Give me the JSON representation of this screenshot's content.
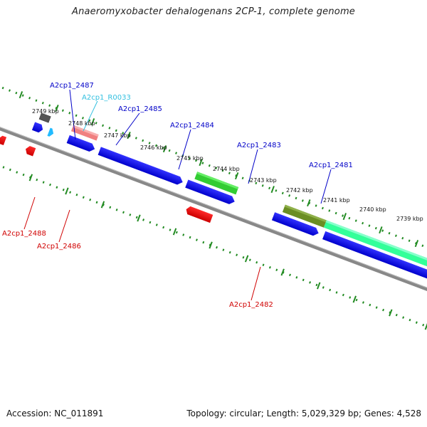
{
  "title": "Anaeromyxobacter dehalogenans 2CP-1, complete genome",
  "footer": {
    "accession": "Accession: NC_011891",
    "summary": "Topology: circular; Length: 5,029,329 bp; Genes: 4,528"
  },
  "kbp_labels": [
    "2749 kbp",
    "2748 kbp",
    "2747 kbp",
    "2746 kbp",
    "2745 kbp",
    "2744 kbp",
    "2743 kbp",
    "2742 kbp",
    "2741 kbp",
    "2740 kbp",
    "2739 kbp"
  ],
  "gene_labels": {
    "a2487": "A2cp1_2487",
    "r0033": "A2cp1_R0033",
    "a2485": "A2cp1_2485",
    "a2484": "A2cp1_2484",
    "a2483": "A2cp1_2483",
    "a2481": "A2cp1_2481",
    "a2488": "A2cp1_2488",
    "a2486": "A2cp1_2486",
    "a2482": "A2cp1_2482"
  },
  "colors": {
    "forward_label": "#0000c8",
    "reverse_label": "#d00000",
    "rna_label": "#33c0e0",
    "cds_blue": "#0000ff",
    "cds_red": "#ff0000",
    "rrna_cyan": "#22bbff",
    "grey_feature": "#555555",
    "pink_feature": "#f08080",
    "green_feature": "#33cc33",
    "olive_feature": "#6b8e23",
    "teal_feature": "#33ff99",
    "backbone": "#888888",
    "dots": "#228b22"
  }
}
